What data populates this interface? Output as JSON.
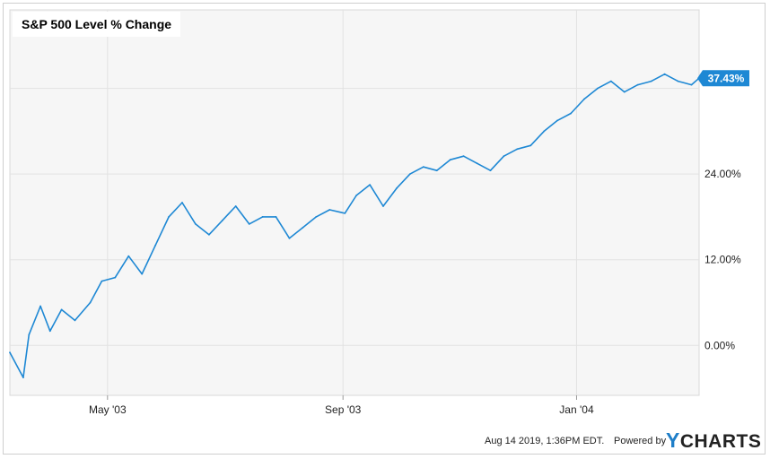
{
  "chart_data": {
    "type": "line",
    "title": "S&P 500 Level % Change",
    "x_tick_labels": [
      "May '03",
      "Sep '03",
      "Jan '04"
    ],
    "y_tick_labels": [
      "0.00%",
      "12.00%",
      "24.00%"
    ],
    "ylim": [
      -7,
      47
    ],
    "xlim": [
      "2003-03-11",
      "2004-03-05"
    ],
    "grid": true,
    "last_value_label": "37.43%",
    "series": [
      {
        "color": "#1e88d4",
        "x": [
          "2003-03-11",
          "2003-03-18",
          "2003-03-21",
          "2003-03-27",
          "2003-04-01",
          "2003-04-07",
          "2003-04-14",
          "2003-04-22",
          "2003-04-28",
          "2003-05-05",
          "2003-05-12",
          "2003-05-19",
          "2003-05-26",
          "2003-06-02",
          "2003-06-09",
          "2003-06-16",
          "2003-06-23",
          "2003-06-30",
          "2003-07-07",
          "2003-07-14",
          "2003-07-21",
          "2003-07-28",
          "2003-08-04",
          "2003-08-11",
          "2003-08-18",
          "2003-08-25",
          "2003-09-02",
          "2003-09-08",
          "2003-09-15",
          "2003-09-22",
          "2003-09-29",
          "2003-10-06",
          "2003-10-13",
          "2003-10-20",
          "2003-10-27",
          "2003-11-03",
          "2003-11-10",
          "2003-11-17",
          "2003-11-24",
          "2003-12-01",
          "2003-12-08",
          "2003-12-15",
          "2003-12-22",
          "2003-12-29",
          "2004-01-05",
          "2004-01-12",
          "2004-01-19",
          "2004-01-26",
          "2004-02-02",
          "2004-02-09",
          "2004-02-16",
          "2004-02-23",
          "2004-03-01",
          "2004-03-05"
        ],
        "values": [
          -1.0,
          -4.5,
          1.5,
          5.5,
          2.0,
          5.0,
          3.5,
          6.0,
          9.0,
          9.5,
          12.5,
          10.0,
          14.0,
          18.0,
          20.0,
          17.0,
          15.5,
          17.5,
          19.5,
          17.0,
          18.0,
          18.0,
          15.0,
          16.5,
          18.0,
          19.0,
          18.5,
          21.0,
          22.5,
          19.5,
          22.0,
          24.0,
          25.0,
          24.5,
          26.0,
          26.5,
          25.5,
          24.5,
          26.5,
          27.5,
          28.0,
          30.0,
          31.5,
          32.5,
          34.5,
          36.0,
          37.0,
          35.5,
          36.5,
          37.0,
          38.0,
          37.0,
          36.5,
          37.43
        ]
      }
    ]
  },
  "footer": {
    "timestamp": "Aug 14 2019, 1:36PM EDT.",
    "powered_by": "Powered by",
    "brand_y": "Y",
    "brand_rest": "CHARTS"
  }
}
